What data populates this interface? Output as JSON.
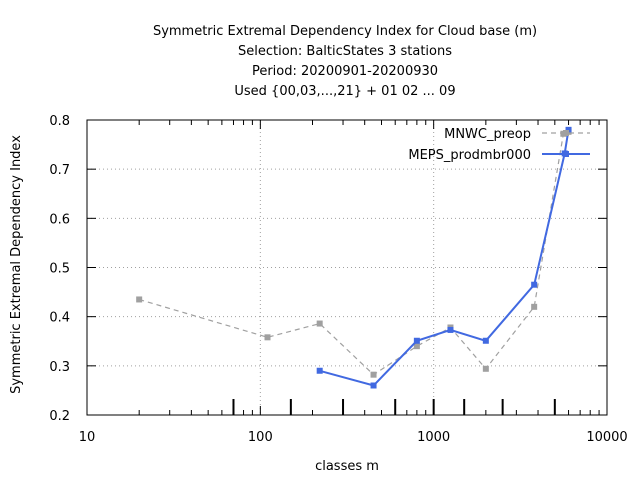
{
  "chart_data": {
    "type": "line",
    "title_lines": [
      "Symmetric Extremal Dependency Index  for Cloud base (m)",
      "Selection: BalticStates      3 stations",
      "Period: 20200901-20200930",
      "Used {00,03,...,21} + 01 02 ... 09"
    ],
    "xlabel": "classes m",
    "ylabel": "Symmetric Extremal Dependency Index",
    "x_scale": "log",
    "xlim": [
      10,
      10000
    ],
    "ylim": [
      0.2,
      0.8
    ],
    "x_ticks": [
      10,
      100,
      1000,
      10000
    ],
    "x_tick_labels": [
      "10",
      "100",
      "1000",
      "10000"
    ],
    "y_ticks": [
      0.2,
      0.3,
      0.4,
      0.5,
      0.6,
      0.7,
      0.8
    ],
    "y_tick_labels": [
      "0.2",
      "0.3",
      "0.4",
      "0.5",
      "0.6",
      "0.7",
      "0.8"
    ],
    "grid": true,
    "legend_position": "top-right",
    "class_markers": [
      70,
      150,
      300,
      600,
      1000,
      1500,
      2500,
      5000
    ],
    "series": [
      {
        "name": "MNWC_preop",
        "color": "#a0a0a0",
        "dashed": true,
        "x": [
          20,
          110,
          220,
          450,
          800,
          1250,
          2000,
          3800,
          5600,
          6000
        ],
        "y": [
          0.435,
          0.358,
          0.386,
          0.282,
          0.34,
          0.378,
          0.294,
          0.42,
          0.772,
          0.776
        ]
      },
      {
        "name": "MEPS_prodmbr000",
        "color": "#4169e1",
        "dashed": false,
        "x": [
          220,
          450,
          800,
          1250,
          2000,
          3800,
          5700,
          6000
        ],
        "y": [
          0.29,
          0.26,
          0.351,
          0.373,
          0.351,
          0.465,
          0.732,
          0.78
        ]
      }
    ]
  }
}
